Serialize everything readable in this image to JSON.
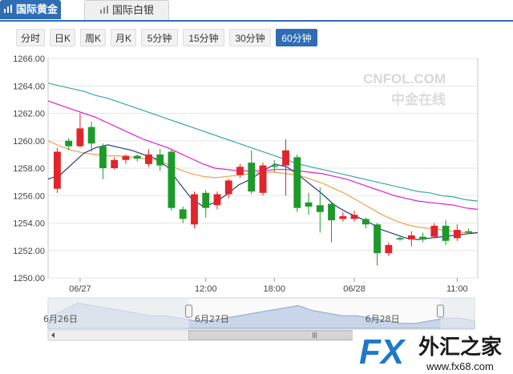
{
  "tabs": [
    {
      "label": "国际黄金",
      "active": true
    },
    {
      "label": "国际白银",
      "active": false
    }
  ],
  "periods": [
    {
      "label": "分时",
      "active": false
    },
    {
      "label": "日K",
      "active": false
    },
    {
      "label": "周K",
      "active": false
    },
    {
      "label": "月K",
      "active": false
    },
    {
      "label": "5分钟",
      "active": false
    },
    {
      "label": "15分钟",
      "active": false
    },
    {
      "label": "30分钟",
      "active": false
    },
    {
      "label": "60分钟",
      "active": true
    }
  ],
  "watermark": {
    "brand": "CNFOL.COM",
    "cn": "中金在线"
  },
  "logo": {
    "fx": "FX",
    "name": "外汇之家",
    "url": "www.fx68.com"
  },
  "colors": {
    "up": "#e0252b",
    "down": "#1d9a2a",
    "accent": "#2f6db5",
    "ma5": "#2a3a8c",
    "ma10": "#f0a050",
    "ma20": "#e020d0",
    "ma30": "#3aa5b0"
  },
  "chart_data": {
    "type": "candlestick",
    "ylim": [
      1250,
      1266
    ],
    "yticks": [
      "1266.00",
      "1264.00",
      "1262.00",
      "1260.00",
      "1258.00",
      "1256.00",
      "1254.00",
      "1252.00",
      "1250.00"
    ],
    "xtick_labels": [
      "06/27",
      "12:00",
      "18:00",
      "06/28",
      "11:00"
    ],
    "candles": [
      {
        "o": 1256.5,
        "c": 1259.2,
        "h": 1259.5,
        "l": 1256.2
      },
      {
        "o": 1260.0,
        "c": 1259.6,
        "h": 1260.2,
        "l": 1259.3
      },
      {
        "o": 1259.6,
        "c": 1260.9,
        "h": 1262.0,
        "l": 1259.5
      },
      {
        "o": 1261.0,
        "c": 1259.8,
        "h": 1261.4,
        "l": 1259.2
      },
      {
        "o": 1259.6,
        "c": 1258.0,
        "h": 1259.8,
        "l": 1257.2
      },
      {
        "o": 1258.0,
        "c": 1258.6,
        "h": 1258.8,
        "l": 1257.9
      },
      {
        "o": 1258.6,
        "c": 1258.9,
        "h": 1259.0,
        "l": 1258.3
      },
      {
        "o": 1258.9,
        "c": 1258.7,
        "h": 1259.0,
        "l": 1258.5
      },
      {
        "o": 1258.3,
        "c": 1259.0,
        "h": 1259.4,
        "l": 1258.1
      },
      {
        "o": 1259.0,
        "c": 1258.2,
        "h": 1259.4,
        "l": 1257.8
      },
      {
        "o": 1259.2,
        "c": 1255.1,
        "h": 1259.4,
        "l": 1254.9
      },
      {
        "o": 1255.0,
        "c": 1254.3,
        "h": 1255.2,
        "l": 1254.0
      },
      {
        "o": 1253.9,
        "c": 1256.1,
        "h": 1256.3,
        "l": 1253.6
      },
      {
        "o": 1256.2,
        "c": 1255.1,
        "h": 1256.4,
        "l": 1254.4
      },
      {
        "o": 1255.3,
        "c": 1256.1,
        "h": 1256.3,
        "l": 1255.0
      },
      {
        "o": 1256.1,
        "c": 1257.1,
        "h": 1257.2,
        "l": 1255.8
      },
      {
        "o": 1257.5,
        "c": 1258.1,
        "h": 1258.3,
        "l": 1257.3
      },
      {
        "o": 1258.4,
        "c": 1256.3,
        "h": 1259.3,
        "l": 1256.1
      },
      {
        "o": 1256.2,
        "c": 1258.2,
        "h": 1258.4,
        "l": 1256.0
      },
      {
        "o": 1258.2,
        "c": 1258.1,
        "h": 1258.6,
        "l": 1257.7
      },
      {
        "o": 1258.2,
        "c": 1259.3,
        "h": 1260.1,
        "l": 1256.0
      },
      {
        "o": 1258.8,
        "c": 1255.1,
        "h": 1259.0,
        "l": 1254.8
      },
      {
        "o": 1255.5,
        "c": 1255.2,
        "h": 1256.2,
        "l": 1254.6
      },
      {
        "o": 1255.3,
        "c": 1254.8,
        "h": 1256.6,
        "l": 1253.3
      },
      {
        "o": 1255.4,
        "c": 1254.2,
        "h": 1255.5,
        "l": 1252.6
      },
      {
        "o": 1254.3,
        "c": 1254.5,
        "h": 1254.8,
        "l": 1254.1
      },
      {
        "o": 1254.3,
        "c": 1254.6,
        "h": 1254.9,
        "l": 1254.1
      },
      {
        "o": 1254.3,
        "c": 1253.9,
        "h": 1254.4,
        "l": 1253.6
      },
      {
        "o": 1253.9,
        "c": 1251.8,
        "h": 1254.0,
        "l": 1250.9
      },
      {
        "o": 1251.8,
        "c": 1252.4,
        "h": 1252.6,
        "l": 1251.6
      },
      {
        "o": 1252.9,
        "c": 1252.8,
        "h": 1253.0,
        "l": 1252.7
      },
      {
        "o": 1252.8,
        "c": 1253.1,
        "h": 1253.4,
        "l": 1252.3
      },
      {
        "o": 1253.0,
        "c": 1252.8,
        "h": 1253.3,
        "l": 1252.6
      },
      {
        "o": 1253.0,
        "c": 1253.8,
        "h": 1254.0,
        "l": 1252.9
      },
      {
        "o": 1253.8,
        "c": 1252.7,
        "h": 1254.2,
        "l": 1252.4
      },
      {
        "o": 1252.9,
        "c": 1253.5,
        "h": 1253.9,
        "l": 1252.7
      },
      {
        "o": 1253.4,
        "c": 1253.3,
        "h": 1253.6,
        "l": 1253.2
      }
    ],
    "ma5": [
      1257.2,
      1257.5,
      1258.3,
      1259.1,
      1259.5,
      1259.7,
      1259.5,
      1259.3,
      1259.0,
      1258.7,
      1258.1,
      1256.9,
      1255.8,
      1255.2,
      1255.5,
      1256.1,
      1256.8,
      1257.2,
      1257.8,
      1258.3,
      1258.1,
      1257.5,
      1256.8,
      1256.1,
      1255.3,
      1254.8,
      1254.4,
      1254.0,
      1253.5,
      1253.2,
      1252.9,
      1252.8,
      1252.9,
      1253.0,
      1253.1,
      1253.2,
      1253.3
    ],
    "ma10": [
      1260.0,
      1259.6,
      1259.3,
      1259.1,
      1259.0,
      1258.9,
      1258.9,
      1258.8,
      1258.7,
      1258.6,
      1258.3,
      1257.9,
      1257.6,
      1257.4,
      1257.3,
      1257.4,
      1257.5,
      1257.6,
      1257.7,
      1257.7,
      1257.6,
      1257.5,
      1257.2,
      1256.9,
      1256.5,
      1256.1,
      1255.6,
      1255.1,
      1254.6,
      1254.2,
      1253.9,
      1253.7,
      1253.6,
      1253.5,
      1253.4,
      1253.3,
      1253.3
    ],
    "ma20": [
      1262.9,
      1262.6,
      1262.3,
      1262.0,
      1261.7,
      1261.3,
      1260.9,
      1260.5,
      1260.1,
      1259.8,
      1259.5,
      1259.1,
      1258.7,
      1258.3,
      1258.0,
      1257.9,
      1257.8,
      1257.8,
      1257.8,
      1257.9,
      1257.9,
      1257.8,
      1257.7,
      1257.6,
      1257.4,
      1257.2,
      1256.9,
      1256.6,
      1256.3,
      1256.0,
      1255.8,
      1255.6,
      1255.5,
      1255.4,
      1255.3,
      1255.1,
      1255.0
    ],
    "ma30": [
      1264.2,
      1264.0,
      1263.8,
      1263.6,
      1263.3,
      1263.1,
      1262.8,
      1262.5,
      1262.2,
      1261.9,
      1261.6,
      1261.3,
      1261.0,
      1260.7,
      1260.4,
      1260.1,
      1259.8,
      1259.5,
      1259.2,
      1258.9,
      1258.6,
      1258.3,
      1258.1,
      1257.9,
      1257.7,
      1257.5,
      1257.3,
      1257.1,
      1256.9,
      1256.7,
      1256.5,
      1256.3,
      1256.2,
      1256.0,
      1255.9,
      1255.7,
      1255.6
    ],
    "navigator": {
      "date_labels": [
        "6月26日",
        "6月27日",
        "6月28日"
      ],
      "series": [
        1253,
        1256,
        1259,
        1258,
        1257,
        1256,
        1255,
        1254,
        1254,
        1253,
        1252,
        1252,
        1253,
        1254,
        1255,
        1256,
        1257,
        1258,
        1256,
        1255,
        1254,
        1254,
        1253,
        1252,
        1251,
        1251,
        1252,
        1253,
        1253,
        1252
      ],
      "selection": [
        0.33,
        0.92
      ]
    }
  }
}
